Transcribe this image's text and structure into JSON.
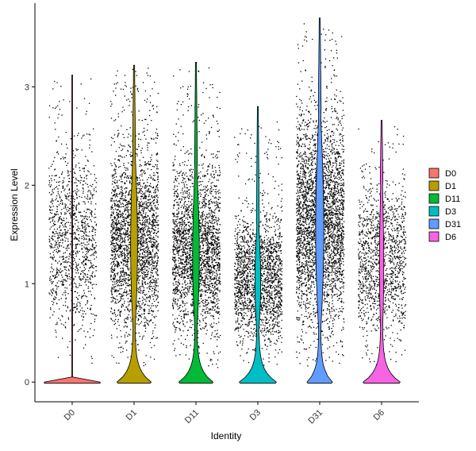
{
  "chart_data": {
    "type": "violin",
    "xlabel": "Identity",
    "ylabel": "Expression Level",
    "ylim": [
      -0.2,
      3.85
    ],
    "yticks": [
      0,
      1,
      2,
      3
    ],
    "categories": [
      "D0",
      "D1",
      "D11",
      "D3",
      "D31",
      "D6"
    ],
    "legend": {
      "position": "right",
      "entries": [
        "D0",
        "D1",
        "D11",
        "D3",
        "D31",
        "D6"
      ]
    },
    "grid": false,
    "jitter_points": true,
    "groups": [
      {
        "name": "D0",
        "color": "#F8766D",
        "max": 3.12,
        "jitter_top": 3.1,
        "dense_top": 2.4,
        "zero_fraction": 0.92,
        "density": 0.45
      },
      {
        "name": "D1",
        "color": "#B79F00",
        "max": 3.22,
        "jitter_top": 3.2,
        "dense_top": 2.4,
        "zero_fraction": 0.55,
        "density": 1.0
      },
      {
        "name": "D11",
        "color": "#00BA38",
        "max": 3.25,
        "jitter_top": 3.2,
        "dense_top": 2.2,
        "zero_fraction": 0.55,
        "density": 0.95
      },
      {
        "name": "D3",
        "color": "#00BFC4",
        "max": 2.8,
        "jitter_top": 2.65,
        "dense_top": 1.6,
        "zero_fraction": 0.6,
        "density": 0.75
      },
      {
        "name": "D31",
        "color": "#619CFF",
        "max": 3.7,
        "jitter_top": 3.65,
        "dense_top": 2.75,
        "zero_fraction": 0.4,
        "density": 1.25
      },
      {
        "name": "D6",
        "color": "#F564E3",
        "max": 2.66,
        "jitter_top": 2.6,
        "dense_top": 2.0,
        "zero_fraction": 0.6,
        "density": 0.5
      }
    ]
  }
}
